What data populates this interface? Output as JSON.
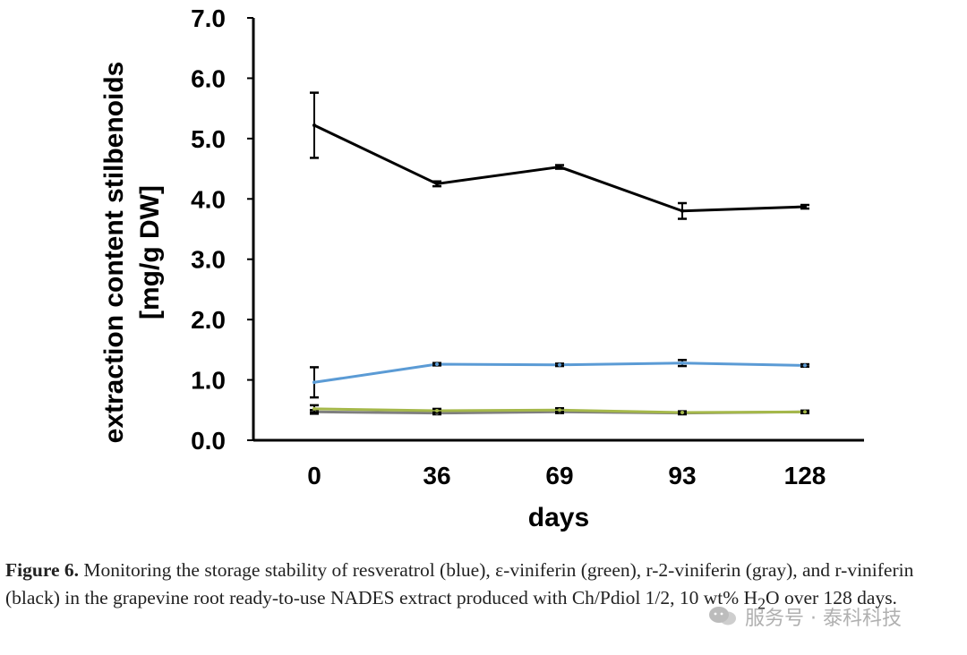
{
  "chart_data": {
    "type": "line",
    "title": "",
    "xlabel": "days",
    "ylabel_line1": "extraction content stilbenoids",
    "ylabel_line2": "[mg/g DW]",
    "categories": [
      "0",
      "36",
      "69",
      "93",
      "128"
    ],
    "ylim": [
      0,
      7
    ],
    "yticks": [
      "0.0",
      "1.0",
      "2.0",
      "3.0",
      "4.0",
      "5.0",
      "6.0",
      "7.0"
    ],
    "grid": false,
    "legend": "none",
    "series": [
      {
        "name": "r-viniferin",
        "color": "#000000",
        "values": [
          5.22,
          4.25,
          4.53,
          3.8,
          3.87
        ],
        "errors": [
          0.54,
          0.04,
          0.03,
          0.13,
          0.03
        ]
      },
      {
        "name": "resveratrol",
        "color": "#5b9bd5",
        "values": [
          0.96,
          1.26,
          1.25,
          1.28,
          1.24
        ],
        "errors": [
          0.25,
          0.02,
          0.02,
          0.05,
          0.02
        ]
      },
      {
        "name": "ε-viniferin",
        "color": "#a5b84a",
        "values": [
          0.52,
          0.49,
          0.5,
          0.46,
          0.47
        ],
        "errors": [
          0.06,
          0.03,
          0.03,
          0.02,
          0.02
        ]
      },
      {
        "name": "r-2-viniferin",
        "color": "#7f7f7f",
        "values": [
          0.47,
          0.45,
          0.47,
          0.45,
          0.47
        ],
        "errors": [
          0.03,
          0.02,
          0.02,
          0.02,
          0.02
        ]
      }
    ]
  },
  "caption": {
    "label": "Figure 6.",
    "text_before_sub": " Monitoring the storage stability of resveratrol (blue), ε-viniferin (green), r-2-viniferin (gray), and r-viniferin (black) in the grapevine root ready-to-use NADES extract produced with Ch/Pdiol 1/2, 10 wt% H",
    "subscript": "2",
    "text_after_sub": "O over 128 days."
  },
  "watermark": {
    "text": "服务号 · 泰科科技"
  }
}
